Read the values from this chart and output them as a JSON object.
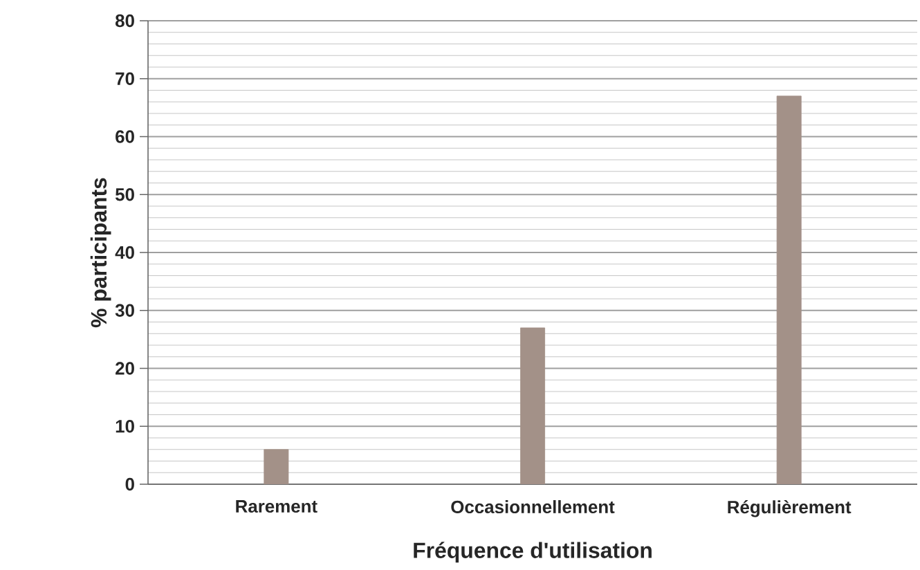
{
  "chart_data": {
    "type": "bar",
    "xlabel": "Fréquence d'utilisation",
    "ylabel": "% participants",
    "categories": [
      "Rarement",
      "Occasionnellement",
      "Régulièrement"
    ],
    "values": [
      6,
      27,
      67
    ],
    "color": "#a39188",
    "ylim": [
      0,
      80
    ],
    "yticks": [
      0,
      10,
      20,
      30,
      40,
      50,
      60,
      70,
      80
    ],
    "grid": "y"
  }
}
